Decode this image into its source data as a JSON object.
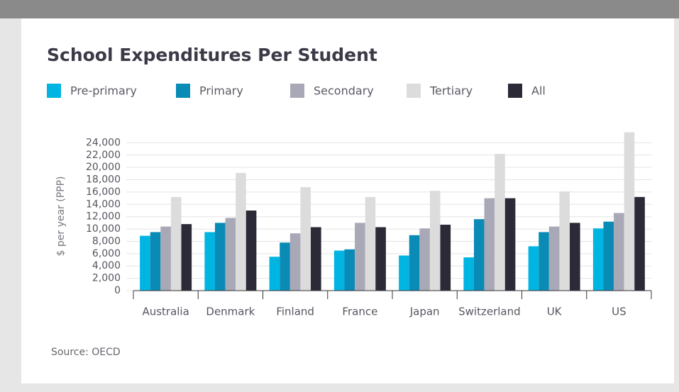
{
  "chart_data": {
    "type": "bar",
    "title": "School Expenditures Per Student",
    "y_label": "$ per year (PPP)",
    "source": "Source: OECD",
    "categories": [
      "Australia",
      "Denmark",
      "Finland",
      "France",
      "Japan",
      "Switzerland",
      "UK",
      "US"
    ],
    "series": [
      {
        "name": "Pre-primary",
        "color": "#00b5e2",
        "values": [
          8900,
          9500,
          5500,
          6500,
          5700,
          5400,
          7200,
          10100
        ]
      },
      {
        "name": "Primary",
        "color": "#0a8bb6",
        "values": [
          9500,
          11000,
          7800,
          6700,
          9000,
          11600,
          9500,
          11200
        ]
      },
      {
        "name": "Secondary",
        "color": "#a9a8b6",
        "values": [
          10400,
          11800,
          9300,
          11000,
          10100,
          15000,
          10400,
          12600
        ]
      },
      {
        "name": "Tertiary",
        "color": "#dcdcdc",
        "values": [
          15200,
          19100,
          16800,
          15200,
          16200,
          22200,
          16100,
          25700
        ]
      },
      {
        "name": "All",
        "color": "#2b2a36",
        "values": [
          10800,
          13000,
          10300,
          10300,
          10700,
          15000,
          11000,
          15200
        ]
      }
    ],
    "ylim": [
      0,
      26000
    ],
    "yticks": [
      0,
      {
        "value": 2000,
        "label": "2,000"
      },
      {
        "value": 4000,
        "label": "4,000"
      },
      {
        "value": 6000,
        "label": "6,000"
      },
      {
        "value": 8000,
        "label": "8,000"
      },
      {
        "value": 10000,
        "label": "10,000"
      },
      {
        "value": 12000,
        "label": "12,000"
      },
      {
        "value": 14000,
        "label": "14,000"
      },
      {
        "value": 16000,
        "label": "16,000"
      },
      {
        "value": 18000,
        "label": "18,000"
      },
      {
        "value": 20000,
        "label": "20,000"
      },
      {
        "value": 22000,
        "label": "22,000"
      },
      {
        "value": 24000,
        "label": "24,000"
      }
    ],
    "grid": true
  }
}
